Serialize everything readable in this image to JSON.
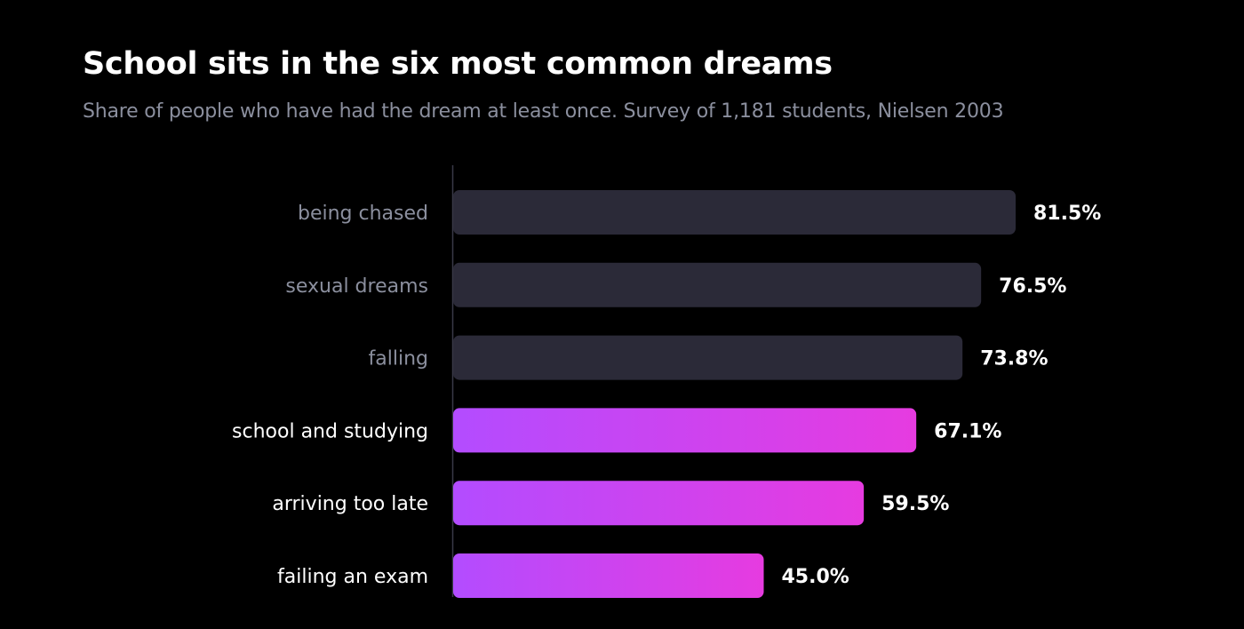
{
  "colors": {
    "background": "#000000",
    "muted_bar": "#2b2a38",
    "highlight_gradient_start": "#b34cff",
    "highlight_gradient_end": "#e63be0",
    "muted_label": "#8b8f9e",
    "highlight_label": "#ffffff",
    "value_label": "#ffffff",
    "axis_line": "#3a3a48"
  },
  "chart_data": {
    "type": "bar",
    "orientation": "horizontal",
    "title": "School sits in the six most common dreams",
    "subtitle": "Share of people who have had the dream at least once. Survey of 1,181 students, Nielsen 2003",
    "categories": [
      "being chased",
      "sexual dreams",
      "falling",
      "school and studying",
      "arriving too late",
      "failing an exam"
    ],
    "values": [
      81.5,
      76.5,
      73.8,
      67.1,
      59.5,
      45.0
    ],
    "value_labels": [
      "81.5%",
      "76.5%",
      "73.8%",
      "67.1%",
      "59.5%",
      "45.0%"
    ],
    "highlighted": [
      false,
      false,
      false,
      true,
      true,
      true
    ],
    "xlim": [
      0,
      100
    ],
    "unit": "%",
    "grid": false,
    "legend": "none"
  }
}
